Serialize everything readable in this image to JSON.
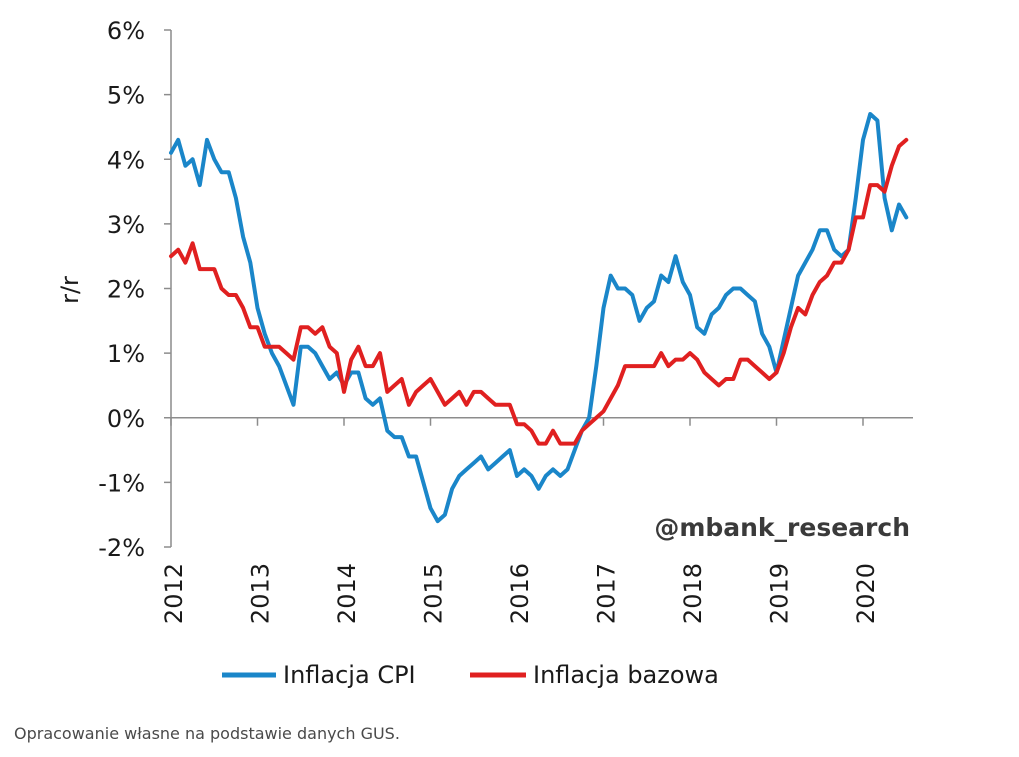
{
  "chart_data": {
    "type": "line",
    "ylabel": "r/r",
    "ylim": [
      -2,
      6
    ],
    "y_ticks": [
      "-2%",
      "-1%",
      "0%",
      "1%",
      "2%",
      "3%",
      "4%",
      "5%",
      "6%"
    ],
    "y_tick_values": [
      -2,
      -1,
      0,
      1,
      2,
      3,
      4,
      5,
      6
    ],
    "x_start": 2012,
    "x_tick_labels": [
      "2012",
      "2013",
      "2014",
      "2015",
      "2016",
      "2017",
      "2018",
      "2019",
      "2020"
    ],
    "watermark": "@mbank_research",
    "colors": {
      "cpi": "#1a86c9",
      "core": "#e02020"
    },
    "series": [
      {
        "name": "Inflacja CPI",
        "color": "#1a86c9",
        "values": [
          4.1,
          4.3,
          3.9,
          4.0,
          3.6,
          4.3,
          4.0,
          3.8,
          3.8,
          3.4,
          2.8,
          2.4,
          1.7,
          1.3,
          1.0,
          0.8,
          0.5,
          0.2,
          1.1,
          1.1,
          1.0,
          0.8,
          0.6,
          0.7,
          0.5,
          0.7,
          0.7,
          0.3,
          0.2,
          0.3,
          -0.2,
          -0.3,
          -0.3,
          -0.6,
          -0.6,
          -1.0,
          -1.4,
          -1.6,
          -1.5,
          -1.1,
          -0.9,
          -0.8,
          -0.7,
          -0.6,
          -0.8,
          -0.7,
          -0.6,
          -0.5,
          -0.9,
          -0.8,
          -0.9,
          -1.1,
          -0.9,
          -0.8,
          -0.9,
          -0.8,
          -0.5,
          -0.2,
          0.0,
          0.8,
          1.7,
          2.2,
          2.0,
          2.0,
          1.9,
          1.5,
          1.7,
          1.8,
          2.2,
          2.1,
          2.5,
          2.1,
          1.9,
          1.4,
          1.3,
          1.6,
          1.7,
          1.9,
          2.0,
          2.0,
          1.9,
          1.8,
          1.3,
          1.1,
          0.7,
          1.2,
          1.7,
          2.2,
          2.4,
          2.6,
          2.9,
          2.9,
          2.6,
          2.5,
          2.6,
          3.4,
          4.3,
          4.7,
          4.6,
          3.4,
          2.9,
          3.3,
          3.1
        ]
      },
      {
        "name": "Inflacja bazowa",
        "color": "#e02020",
        "values": [
          2.5,
          2.6,
          2.4,
          2.7,
          2.3,
          2.3,
          2.3,
          2.0,
          1.9,
          1.9,
          1.7,
          1.4,
          1.4,
          1.1,
          1.1,
          1.1,
          1.0,
          0.9,
          1.4,
          1.4,
          1.3,
          1.4,
          1.1,
          1.0,
          0.4,
          0.9,
          1.1,
          0.8,
          0.8,
          1.0,
          0.4,
          0.5,
          0.6,
          0.2,
          0.4,
          0.5,
          0.6,
          0.4,
          0.2,
          0.3,
          0.4,
          0.2,
          0.4,
          0.4,
          0.3,
          0.2,
          0.2,
          0.2,
          -0.1,
          -0.1,
          -0.2,
          -0.4,
          -0.4,
          -0.2,
          -0.4,
          -0.4,
          -0.4,
          -0.2,
          -0.1,
          0.0,
          0.1,
          0.3,
          0.5,
          0.8,
          0.8,
          0.8,
          0.8,
          0.8,
          1.0,
          0.8,
          0.9,
          0.9,
          1.0,
          0.9,
          0.7,
          0.6,
          0.5,
          0.6,
          0.6,
          0.9,
          0.9,
          0.8,
          0.7,
          0.6,
          0.7,
          1.0,
          1.4,
          1.7,
          1.6,
          1.9,
          2.1,
          2.2,
          2.4,
          2.4,
          2.6,
          3.1,
          3.1,
          3.6,
          3.6,
          3.5,
          3.9,
          4.2,
          4.3
        ]
      }
    ]
  },
  "caption": "Opracowanie własne na podstawie danych GUS."
}
